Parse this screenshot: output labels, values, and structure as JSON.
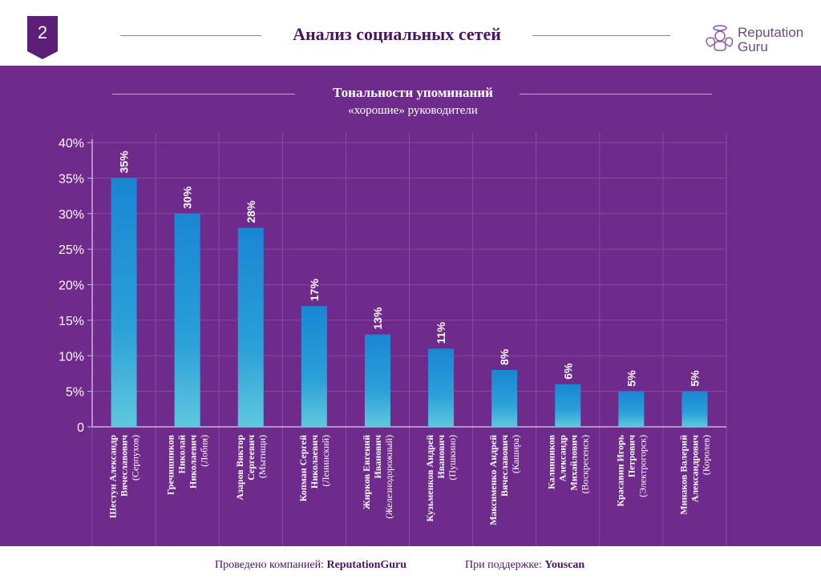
{
  "header": {
    "slide_number": "2",
    "title": "Анализ социальных сетей",
    "logo_line1": "Reputation",
    "logo_line2": "Guru"
  },
  "chart_data": {
    "type": "bar",
    "title": "Тональности упоминаний",
    "subtitle": "«хорошие» руководители",
    "ylim": [
      0,
      40
    ],
    "yticks": [
      "0",
      "5%",
      "10%",
      "15%",
      "20%",
      "25%",
      "30%",
      "35%",
      "40%"
    ],
    "ytick_values": [
      0,
      5,
      10,
      15,
      20,
      25,
      30,
      35,
      40
    ],
    "categories": [
      [
        "Шестун Александр",
        "Вячеславович",
        "(Серпухов)"
      ],
      [
        "Гречишников",
        "Николай",
        "Николаевич",
        "(Лобня)"
      ],
      [
        "Азаров Виктор",
        "Сергеевич",
        "(Мытищи)"
      ],
      [
        "Копман Сергей",
        "Николаевич",
        "(Ленинский)"
      ],
      [
        "Жирков Евгений",
        "Иванович",
        "(Железнодорожный)"
      ],
      [
        "Кузьменков Андрей",
        "Иванович",
        "(Пушкино)"
      ],
      [
        "Максименко Андрей",
        "Вячеславович",
        "(Кашира)"
      ],
      [
        "Калинников",
        "Александр",
        "Михайлович",
        "(Воскресенск)"
      ],
      [
        "Красавин Игорь",
        "Петрович",
        "(Электрогорск)"
      ],
      [
        "Минаков Валерий",
        "Александрович",
        "(Королев)"
      ]
    ],
    "values": [
      35,
      30,
      28,
      17,
      13,
      11,
      8,
      6,
      5,
      5
    ],
    "value_labels": [
      "35%",
      "30%",
      "28%",
      "17%",
      "13%",
      "11%",
      "8%",
      "6%",
      "5%",
      "5%"
    ],
    "bar_color_top": "#1a86d4",
    "bar_color_bottom": "#5fc8de"
  },
  "footer": {
    "left_prefix": "Проведено компанией:",
    "left_company": "ReputationGuru",
    "right_prefix": "При поддержке:",
    "right_company": "Youscan"
  },
  "colors": {
    "background": "#6e2b8b",
    "accent": "#6a2a86"
  }
}
